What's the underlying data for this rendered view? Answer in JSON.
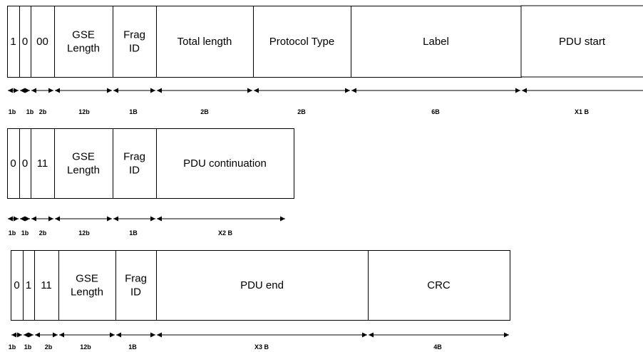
{
  "packets": [
    {
      "name": "start",
      "fields": [
        {
          "lines": [
            "1"
          ],
          "size": "1b"
        },
        {
          "lines": [
            "0"
          ],
          "size": "1b"
        },
        {
          "lines": [
            "00"
          ],
          "size": "2b"
        },
        {
          "lines": [
            "GSE",
            "Length"
          ],
          "size": "12b"
        },
        {
          "lines": [
            "Frag",
            "ID"
          ],
          "size": "1B"
        },
        {
          "lines": [
            "Total length"
          ],
          "size": "2B"
        },
        {
          "lines": [
            "Protocol Type"
          ],
          "size": "2B"
        },
        {
          "lines": [
            "Label"
          ],
          "size": "6B"
        },
        {
          "lines": [
            "PDU start"
          ],
          "size": "X1 B"
        }
      ]
    },
    {
      "name": "continuation",
      "fields": [
        {
          "lines": [
            "0"
          ],
          "size": "1b"
        },
        {
          "lines": [
            "0"
          ],
          "size": "1b"
        },
        {
          "lines": [
            "11"
          ],
          "size": "2b"
        },
        {
          "lines": [
            "GSE",
            "Length"
          ],
          "size": "12b"
        },
        {
          "lines": [
            "Frag",
            "ID"
          ],
          "size": "1B"
        },
        {
          "lines": [
            "PDU continuation"
          ],
          "size": "X2 B"
        }
      ]
    },
    {
      "name": "end",
      "fields": [
        {
          "lines": [
            "0"
          ],
          "size": "1b"
        },
        {
          "lines": [
            "1"
          ],
          "size": "1b"
        },
        {
          "lines": [
            "11"
          ],
          "size": "2b"
        },
        {
          "lines": [
            "GSE",
            "Length"
          ],
          "size": "12b"
        },
        {
          "lines": [
            "Frag",
            "ID"
          ],
          "size": "1B"
        },
        {
          "lines": [
            "PDU end"
          ],
          "size": "X3 B"
        },
        {
          "lines": [
            "CRC"
          ],
          "size": "4B"
        }
      ]
    }
  ]
}
